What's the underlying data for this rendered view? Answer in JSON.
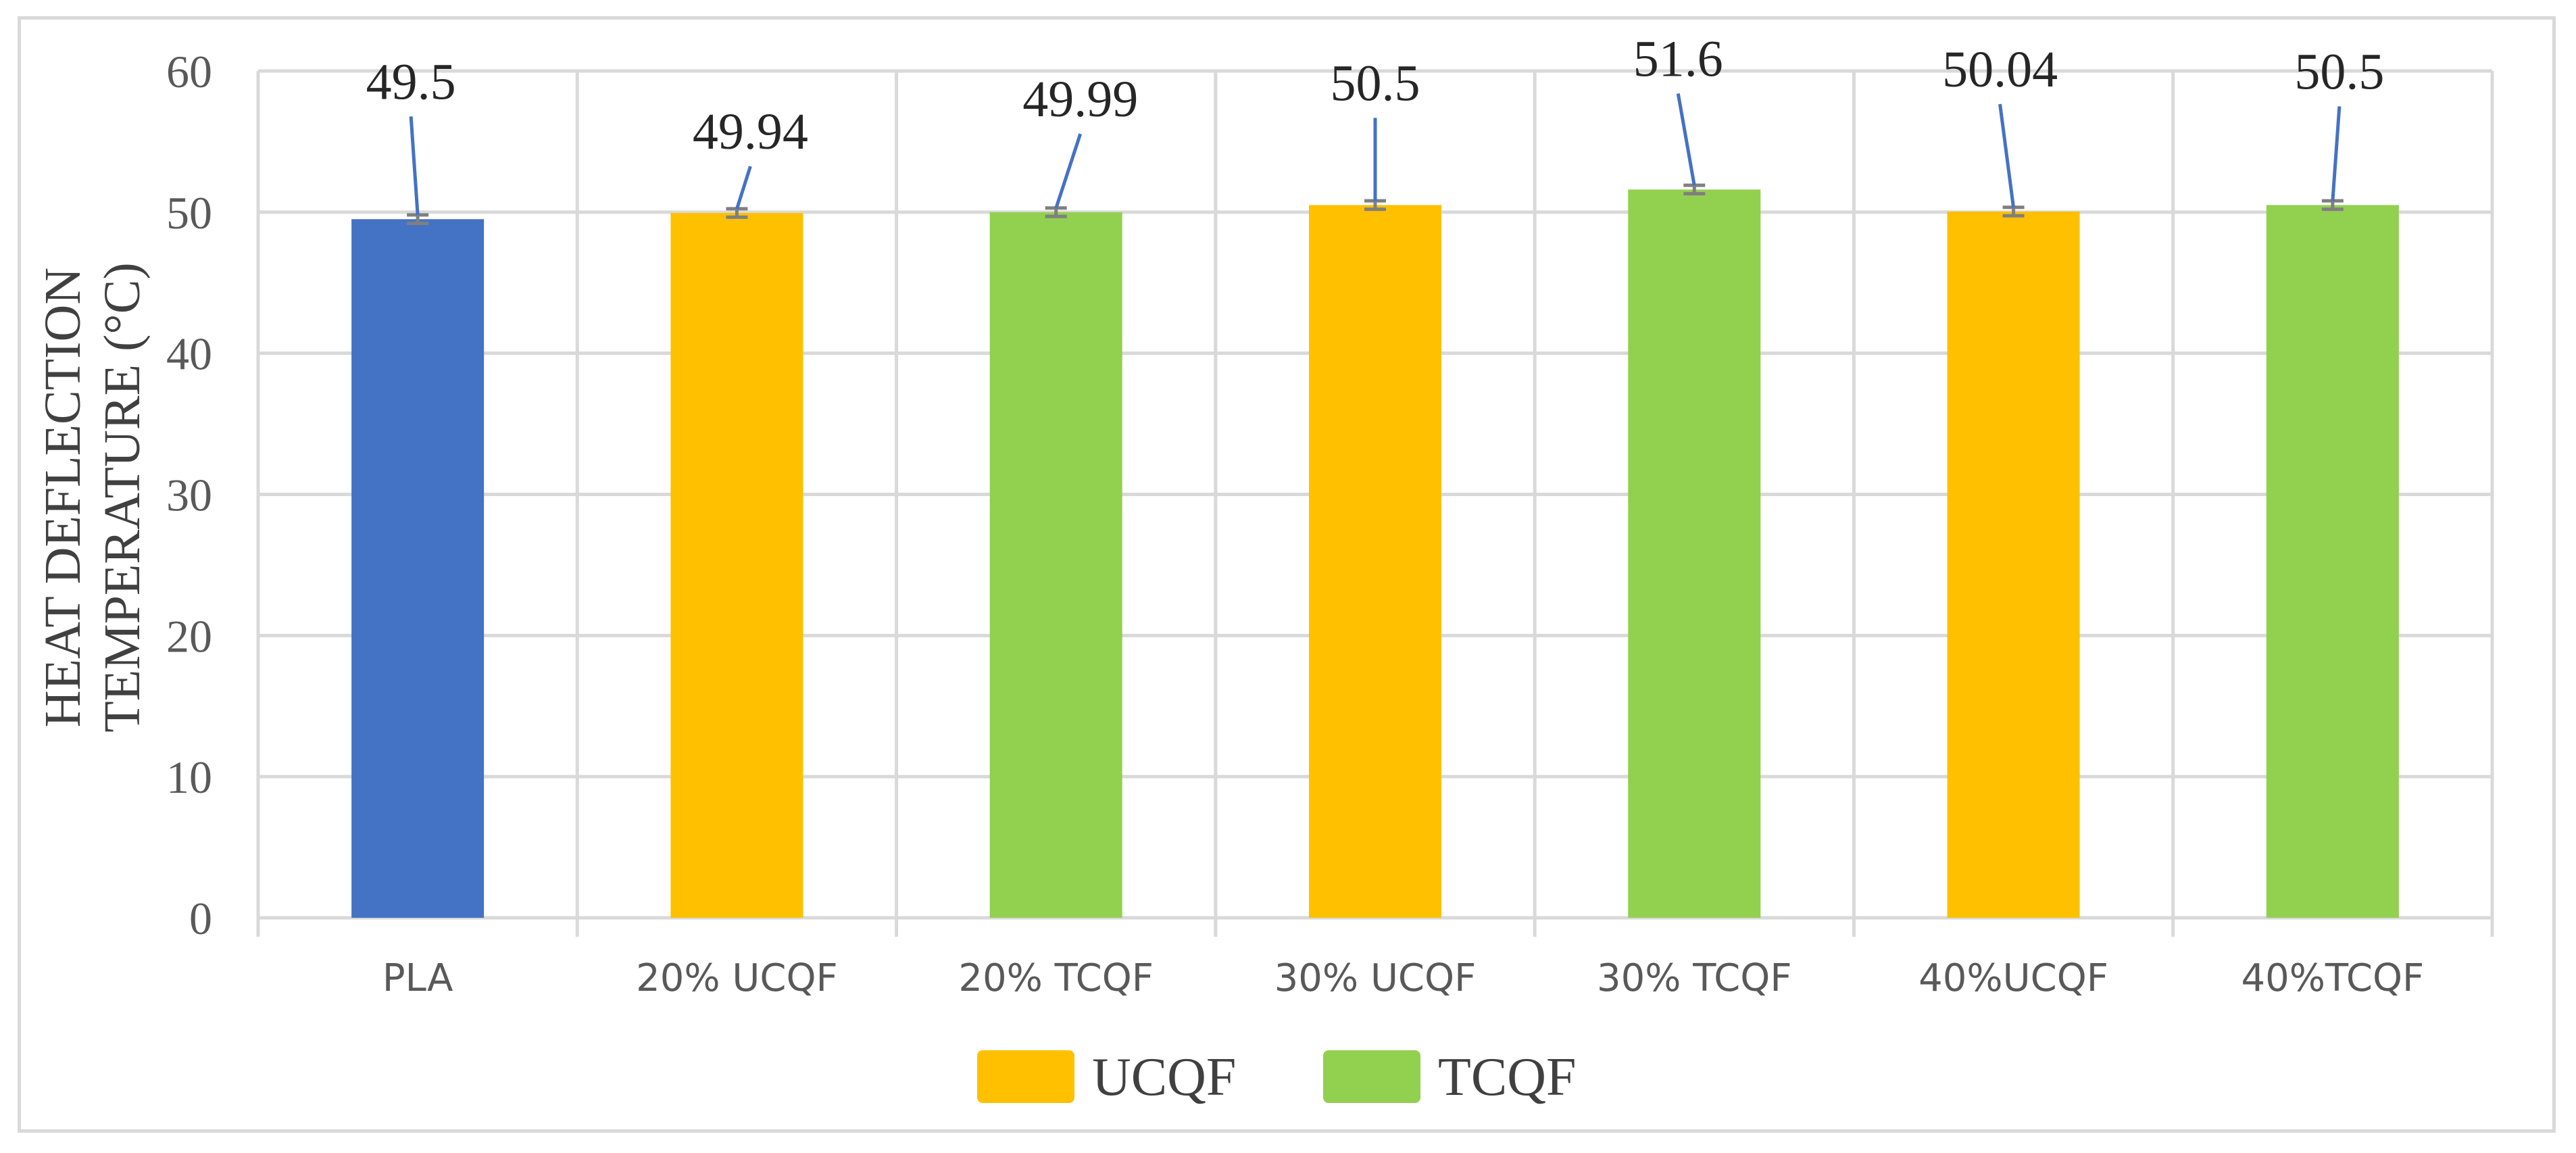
{
  "chart_data": {
    "type": "bar",
    "title": "",
    "xlabel": "",
    "ylabel_lines": [
      "HEAT DEFLECTION",
      "TEMPERATURE (°C)"
    ],
    "ylim": [
      0,
      60
    ],
    "yticks": [
      0,
      10,
      20,
      30,
      40,
      50,
      60
    ],
    "grid": true,
    "legend_position": "bottom",
    "categories": [
      "PLA",
      "20% UCQF",
      "20% TCQF",
      "30% UCQF",
      "30% TCQF",
      "40%UCQF",
      "40%TCQF"
    ],
    "values": [
      49.5,
      49.94,
      49.99,
      50.5,
      51.6,
      50.04,
      50.5
    ],
    "value_labels": [
      "49.5",
      "49.94",
      "49.99",
      "50.5",
      "51.6",
      "50.04",
      "50.5"
    ],
    "series_group": [
      "PLA",
      "UCQF",
      "TCQF",
      "UCQF",
      "TCQF",
      "UCQF",
      "TCQF"
    ],
    "error_bars": [
      0.3,
      0.3,
      0.3,
      0.3,
      0.3,
      0.3,
      0.3
    ],
    "colors": {
      "PLA": "#4472c4",
      "UCQF": "#ffc000",
      "TCQF": "#92d050",
      "grid": "#d9d9d9",
      "leader": "#4472c4",
      "error": "#7f7f7f"
    },
    "legend": [
      {
        "name": "UCQF",
        "color": "#ffc000"
      },
      {
        "name": "TCQF",
        "color": "#92d050"
      }
    ]
  }
}
